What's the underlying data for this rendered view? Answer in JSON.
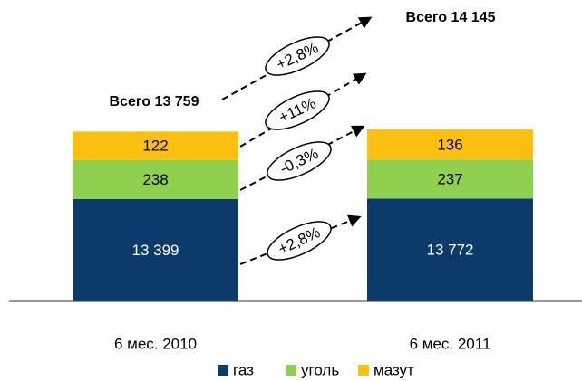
{
  "chart_data": {
    "type": "stacked_bar",
    "categories": [
      "6 мес. 2010",
      "6 мес. 2011"
    ],
    "series": [
      {
        "name": "газ",
        "color": "#0c3a6b",
        "values": [
          13399,
          13772
        ],
        "value_labels": [
          "13 399",
          "13 772"
        ]
      },
      {
        "name": "уголь",
        "color": "#8fd14f",
        "values": [
          238,
          237
        ]
      },
      {
        "name": "мазут",
        "color": "#ffbf0f",
        "values": [
          122,
          136
        ]
      }
    ],
    "totals": [
      "Всего 13 759",
      "Всего 14 145"
    ],
    "annotations": [
      "+2,8%",
      "+11%",
      "-0,3%",
      "+2,8%"
    ]
  }
}
